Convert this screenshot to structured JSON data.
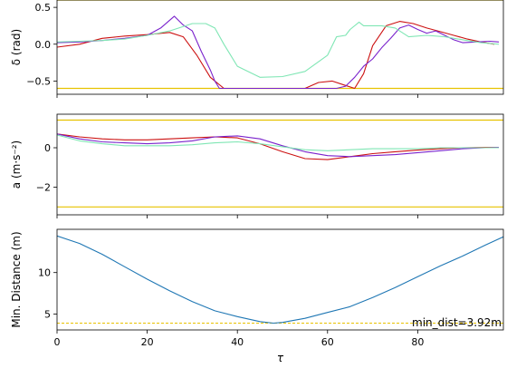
{
  "colors": {
    "limit_line": "#e8c200",
    "series_red": "#cc1111",
    "series_purple": "#7a22cc",
    "series_green": "#7fe6b4",
    "distance_line": "#1f77b4",
    "min_dist_dashed": "#e8c200"
  },
  "chart_data": [
    {
      "type": "line",
      "ylabel": "δ (rad)",
      "xlim": [
        0,
        99
      ],
      "ylim": [
        -0.68,
        0.6
      ],
      "yticks": [
        0.5,
        0.0,
        -0.5
      ],
      "ytick_labels": [
        "0.5",
        "0.0",
        "−0.5"
      ],
      "xticks": [
        0,
        20,
        40,
        60,
        80
      ],
      "show_x_tick_labels": false,
      "grid": false,
      "hlines": [
        0.6,
        -0.6
      ],
      "series": [
        {
          "color": "series_red",
          "x": [
            0,
            5,
            10,
            15,
            20,
            25,
            28,
            31,
            34,
            37,
            40,
            50,
            55,
            58,
            61,
            64,
            66,
            68,
            70,
            73,
            76,
            79,
            82,
            85,
            88,
            91,
            94,
            97
          ],
          "y": [
            -0.04,
            0.0,
            0.08,
            0.11,
            0.13,
            0.16,
            0.1,
            -0.15,
            -0.45,
            -0.6,
            -0.6,
            -0.6,
            -0.6,
            -0.52,
            -0.5,
            -0.56,
            -0.6,
            -0.4,
            -0.02,
            0.25,
            0.31,
            0.28,
            0.22,
            0.17,
            0.12,
            0.07,
            0.03,
            0.0
          ]
        },
        {
          "color": "series_purple",
          "x": [
            0,
            5,
            10,
            15,
            20,
            23,
            26,
            28,
            30,
            32,
            34,
            35,
            36,
            40,
            62,
            64,
            66,
            68,
            70,
            72,
            74,
            76,
            78,
            80,
            82,
            84,
            86,
            88,
            90,
            93,
            96,
            98
          ],
          "y": [
            0.02,
            0.03,
            0.05,
            0.08,
            0.12,
            0.22,
            0.38,
            0.26,
            0.18,
            -0.1,
            -0.35,
            -0.5,
            -0.6,
            -0.6,
            -0.6,
            -0.57,
            -0.45,
            -0.3,
            -0.2,
            -0.05,
            0.08,
            0.22,
            0.26,
            0.2,
            0.15,
            0.18,
            0.12,
            0.06,
            0.02,
            0.03,
            0.04,
            0.03
          ]
        },
        {
          "color": "series_green",
          "x": [
            0,
            5,
            10,
            15,
            20,
            25,
            30,
            33,
            35,
            37,
            40,
            45,
            50,
            55,
            60,
            62,
            64,
            65,
            67,
            68,
            70,
            72,
            75,
            78,
            82,
            86,
            90,
            94,
            98
          ],
          "y": [
            0.03,
            0.04,
            0.05,
            0.07,
            0.12,
            0.18,
            0.28,
            0.28,
            0.22,
            0.0,
            -0.3,
            -0.45,
            -0.44,
            -0.37,
            -0.15,
            0.1,
            0.12,
            0.2,
            0.3,
            0.25,
            0.25,
            0.25,
            0.22,
            0.1,
            0.12,
            0.1,
            0.06,
            0.02,
            0.0
          ]
        }
      ]
    },
    {
      "type": "line",
      "ylabel": "a (m·s⁻²)",
      "xlim": [
        0,
        99
      ],
      "ylim": [
        -3.4,
        1.7
      ],
      "yticks": [
        0,
        -2
      ],
      "ytick_labels": [
        "0",
        "−2"
      ],
      "xticks": [
        0,
        20,
        40,
        60,
        80
      ],
      "show_x_tick_labels": false,
      "grid": false,
      "hlines": [
        1.4,
        -3.0
      ],
      "series": [
        {
          "color": "series_red",
          "x": [
            0,
            5,
            10,
            15,
            20,
            25,
            30,
            35,
            40,
            45,
            50,
            55,
            60,
            65,
            70,
            75,
            80,
            85,
            90,
            95,
            98
          ],
          "y": [
            0.7,
            0.55,
            0.45,
            0.4,
            0.4,
            0.45,
            0.5,
            0.55,
            0.5,
            0.2,
            -0.2,
            -0.55,
            -0.6,
            -0.45,
            -0.3,
            -0.2,
            -0.12,
            -0.05,
            0.0,
            0.02,
            0.02
          ]
        },
        {
          "color": "series_purple",
          "x": [
            0,
            5,
            10,
            15,
            20,
            25,
            30,
            35,
            40,
            45,
            50,
            55,
            60,
            65,
            70,
            75,
            80,
            85,
            90,
            95,
            98
          ],
          "y": [
            0.7,
            0.45,
            0.3,
            0.25,
            0.2,
            0.25,
            0.35,
            0.55,
            0.6,
            0.45,
            0.1,
            -0.2,
            -0.4,
            -0.45,
            -0.4,
            -0.35,
            -0.25,
            -0.15,
            -0.05,
            0.0,
            0.02
          ]
        },
        {
          "color": "series_green",
          "x": [
            0,
            5,
            10,
            15,
            20,
            25,
            30,
            35,
            40,
            45,
            50,
            55,
            60,
            65,
            70,
            75,
            80,
            85,
            90,
            95,
            98
          ],
          "y": [
            0.65,
            0.35,
            0.2,
            0.1,
            0.1,
            0.1,
            0.15,
            0.25,
            0.3,
            0.2,
            0.05,
            -0.1,
            -0.15,
            -0.1,
            -0.05,
            -0.05,
            -0.05,
            0.0,
            0.0,
            0.0,
            0.0
          ]
        }
      ]
    },
    {
      "type": "line",
      "ylabel": "Min. Distance (m)",
      "xlabel": "τ",
      "xlim": [
        0,
        99
      ],
      "ylim": [
        3.1,
        15.2
      ],
      "yticks": [
        5,
        10
      ],
      "ytick_labels": [
        "5",
        "10"
      ],
      "xticks": [
        0,
        20,
        40,
        60,
        80
      ],
      "xtick_labels": [
        "0",
        "20",
        "40",
        "60",
        "80"
      ],
      "grid": false,
      "annotation": "min_dist=3.92m",
      "min_dist_line": 3.92,
      "series": [
        {
          "color": "distance_line",
          "x": [
            0,
            5,
            10,
            15,
            20,
            25,
            30,
            35,
            40,
            45,
            48,
            50,
            55,
            60,
            65,
            70,
            75,
            80,
            85,
            90,
            95,
            99
          ],
          "y": [
            14.4,
            13.5,
            12.2,
            10.7,
            9.2,
            7.8,
            6.5,
            5.4,
            4.7,
            4.1,
            3.92,
            4.0,
            4.5,
            5.2,
            5.9,
            7.0,
            8.2,
            9.5,
            10.8,
            12.0,
            13.3,
            14.3
          ]
        }
      ]
    }
  ]
}
